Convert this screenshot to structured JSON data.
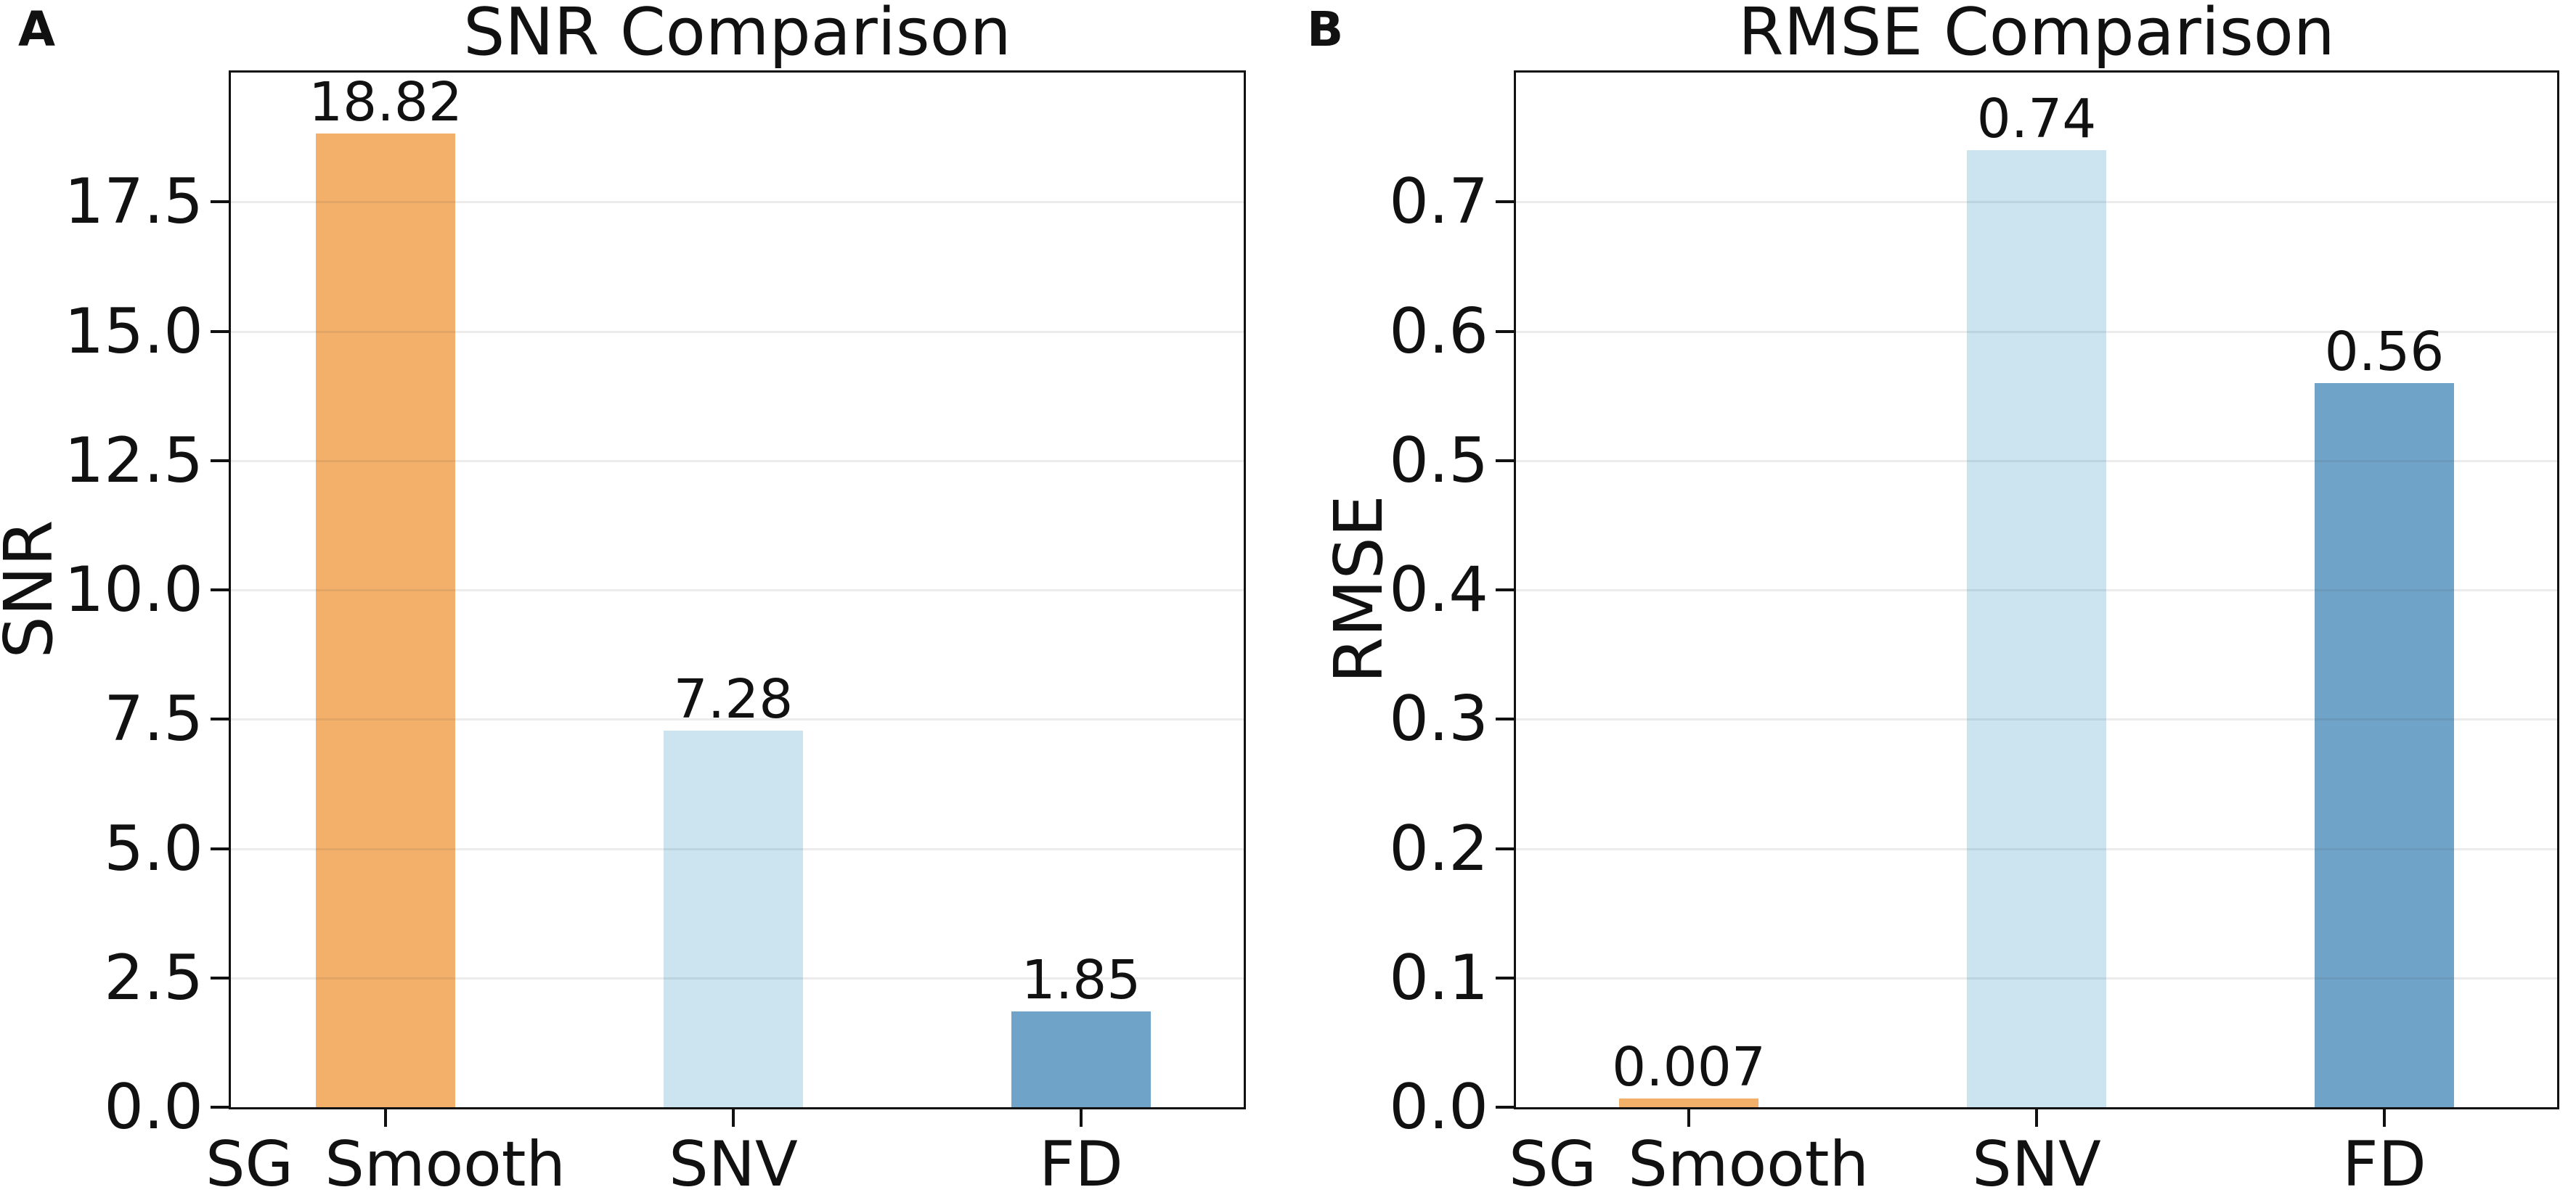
{
  "figure": {
    "background": "#ffffff",
    "panel_letters": [
      "A",
      "B"
    ]
  },
  "chart_data": [
    {
      "type": "bar",
      "panel_label": "A",
      "title": "SNR Comparison",
      "xlabel": "",
      "ylabel": "SNR",
      "categories": [
        "SG_Smooth",
        "SNV",
        "FD"
      ],
      "values": [
        18.82,
        7.28,
        1.85
      ],
      "bar_labels": [
        "18.82",
        "7.28",
        "1.85"
      ],
      "bar_colors": [
        "#F3B06A",
        "#CBE4F0",
        "#6FA3C7"
      ],
      "ylim": [
        0,
        20
      ],
      "yticks": [
        0.0,
        2.5,
        5.0,
        7.5,
        10.0,
        12.5,
        15.0,
        17.5
      ],
      "ytick_labels": [
        "0.0",
        "2.5",
        "5.0",
        "7.5",
        "10.0",
        "12.5",
        "15.0",
        "17.5"
      ],
      "grid": "horizontal",
      "legend": "none"
    },
    {
      "type": "bar",
      "panel_label": "B",
      "title": "RMSE Comparison",
      "xlabel": "",
      "ylabel": "RMSE",
      "categories": [
        "SG_Smooth",
        "SNV",
        "FD"
      ],
      "values": [
        0.007,
        0.74,
        0.56
      ],
      "bar_labels": [
        "0.007",
        "0.74",
        "0.56"
      ],
      "bar_colors": [
        "#F3B06A",
        "#CBE4F0",
        "#6FA3C7"
      ],
      "ylim": [
        0,
        0.8
      ],
      "yticks": [
        0.0,
        0.1,
        0.2,
        0.3,
        0.4,
        0.5,
        0.6,
        0.7
      ],
      "ytick_labels": [
        "0.0",
        "0.1",
        "0.2",
        "0.3",
        "0.4",
        "0.5",
        "0.6",
        "0.7"
      ],
      "grid": "horizontal",
      "legend": "none"
    }
  ]
}
